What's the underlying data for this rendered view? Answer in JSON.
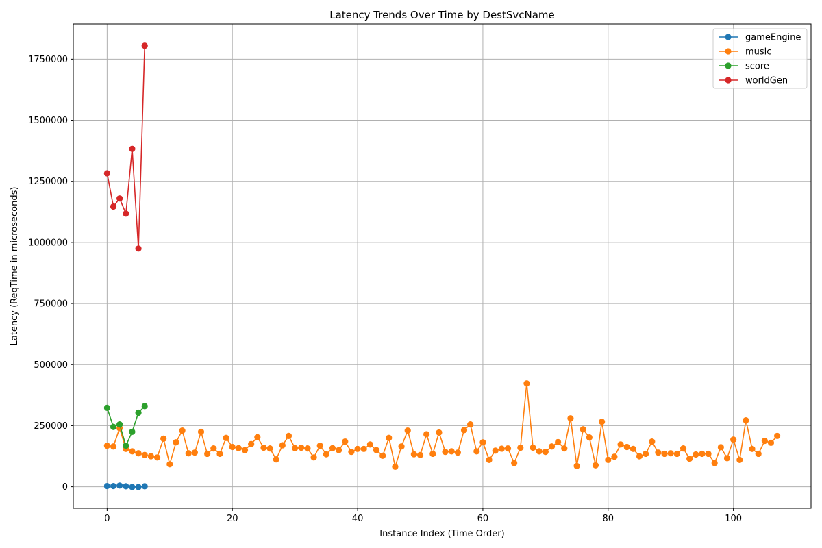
{
  "chart_data": {
    "type": "line",
    "title": "Latency Trends Over Time by DestSvcName",
    "xlabel": "Instance Index (Time Order)",
    "ylabel": "Latency (ReqTime in microseconds)",
    "xlim": [
      -5.4,
      112.4
    ],
    "ylim": [
      -88000,
      1894000
    ],
    "xticks": [
      0,
      20,
      40,
      60,
      80,
      100
    ],
    "yticks": [
      0,
      250000,
      500000,
      750000,
      1000000,
      1250000,
      1500000,
      1750000
    ],
    "grid": true,
    "legend_position": "top-right",
    "series": [
      {
        "name": "gameEngine",
        "color": "#1f77b4",
        "x": [
          0,
          1,
          2,
          3,
          4,
          5,
          6
        ],
        "y": [
          3000,
          3000,
          5000,
          2000,
          -1000,
          -1000,
          2000
        ]
      },
      {
        "name": "music",
        "color": "#ff7f0e",
        "x": [
          0,
          1,
          2,
          3,
          4,
          5,
          6,
          7,
          8,
          9,
          10,
          11,
          12,
          13,
          14,
          15,
          16,
          17,
          18,
          19,
          20,
          21,
          22,
          23,
          24,
          25,
          26,
          27,
          28,
          29,
          30,
          31,
          32,
          33,
          34,
          35,
          36,
          37,
          38,
          39,
          40,
          41,
          42,
          43,
          44,
          45,
          46,
          47,
          48,
          49,
          50,
          51,
          52,
          53,
          54,
          55,
          56,
          57,
          58,
          59,
          60,
          61,
          62,
          63,
          64,
          65,
          66,
          67,
          68,
          69,
          70,
          71,
          72,
          73,
          74,
          75,
          76,
          77,
          78,
          79,
          80,
          81,
          82,
          83,
          84,
          85,
          86,
          87,
          88,
          89,
          90,
          91,
          92,
          93,
          94,
          95,
          96,
          97,
          98,
          99,
          100,
          101,
          102,
          103,
          104,
          105,
          106,
          107
        ],
        "y": [
          168000,
          165000,
          240000,
          155000,
          145000,
          137000,
          130000,
          125000,
          120000,
          197000,
          92000,
          182000,
          230000,
          137000,
          140000,
          225000,
          135000,
          157000,
          135000,
          200000,
          163000,
          158000,
          150000,
          175000,
          203000,
          160000,
          157000,
          112000,
          170000,
          208000,
          158000,
          160000,
          157000,
          120000,
          168000,
          133000,
          158000,
          150000,
          185000,
          143000,
          155000,
          155000,
          173000,
          150000,
          127000,
          200000,
          82000,
          165000,
          230000,
          133000,
          130000,
          215000,
          135000,
          222000,
          143000,
          145000,
          140000,
          232000,
          255000,
          145000,
          182000,
          110000,
          148000,
          156000,
          157000,
          97000,
          160000,
          423000,
          160000,
          145000,
          143000,
          165000,
          183000,
          157000,
          280000,
          85000,
          235000,
          202000,
          88000,
          266000,
          110000,
          123000,
          173000,
          163000,
          155000,
          125000,
          135000,
          185000,
          140000,
          135000,
          137000,
          135000,
          157000,
          115000,
          132000,
          135000,
          135000,
          97000,
          162000,
          117000,
          193000,
          110000,
          272000,
          155000,
          135000,
          188000,
          180000,
          208000
        ]
      },
      {
        "name": "score",
        "color": "#2ca02c",
        "x": [
          0,
          1,
          2,
          3,
          4,
          5,
          6
        ],
        "y": [
          323000,
          245000,
          255000,
          168000,
          225000,
          303000,
          330000
        ]
      },
      {
        "name": "worldGen",
        "color": "#d62728",
        "x": [
          0,
          1,
          2,
          3,
          4,
          5,
          6
        ],
        "y": [
          1283000,
          1147000,
          1180000,
          1118000,
          1383000,
          975000,
          1805000
        ]
      }
    ]
  }
}
